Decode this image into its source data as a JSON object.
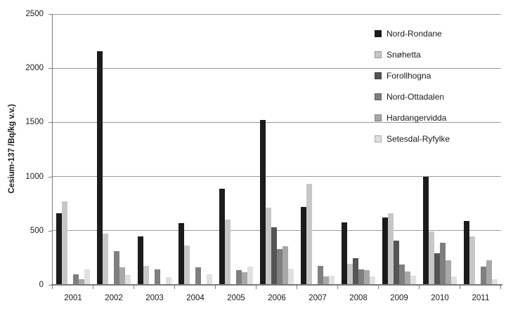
{
  "chart_data": {
    "type": "bar",
    "title": "",
    "ylabel": "Cesium-137 /Bq/kg v.v.)",
    "xlabel": "",
    "ylim": [
      0,
      2500
    ],
    "yticks": [
      0,
      500,
      1000,
      1500,
      2000,
      2500
    ],
    "grid": "horizontal gridlines every 500",
    "legend_position": "upper-right, transparent background",
    "categories": [
      "2001",
      "2002",
      "2003",
      "2004",
      "2005",
      "2006",
      "2007",
      "2008",
      "2009",
      "2010",
      "2011"
    ],
    "series": [
      {
        "name": "Nord-Rondane",
        "color": "#1c1c1c",
        "values": [
          660,
          2160,
          450,
          570,
          890,
          1520,
          720,
          575,
          620,
          1000,
          590
        ]
      },
      {
        "name": "Snøhetta",
        "color": "#c7c7c7",
        "values": [
          770,
          470,
          175,
          360,
          600,
          710,
          930,
          195,
          660,
          490,
          450
        ]
      },
      {
        "name": "Forollhogna",
        "color": "#555555",
        "values": [
          null,
          null,
          null,
          null,
          null,
          530,
          null,
          245,
          410,
          290,
          null
        ]
      },
      {
        "name": "Nord-Ottadalen",
        "color": "#7f7f7f",
        "values": [
          100,
          310,
          140,
          165,
          135,
          330,
          175,
          145,
          185,
          390,
          170
        ]
      },
      {
        "name": "Hardangervidda",
        "color": "#a8a8a8",
        "values": [
          55,
          160,
          null,
          null,
          115,
          355,
          80,
          135,
          125,
          230,
          230
        ]
      },
      {
        "name": "Setesdal-Ryfylke",
        "color": "#e0e0e0",
        "values": [
          140,
          90,
          70,
          100,
          170,
          150,
          85,
          80,
          85,
          80,
          50
        ],
        "pattern": "dots"
      }
    ]
  }
}
